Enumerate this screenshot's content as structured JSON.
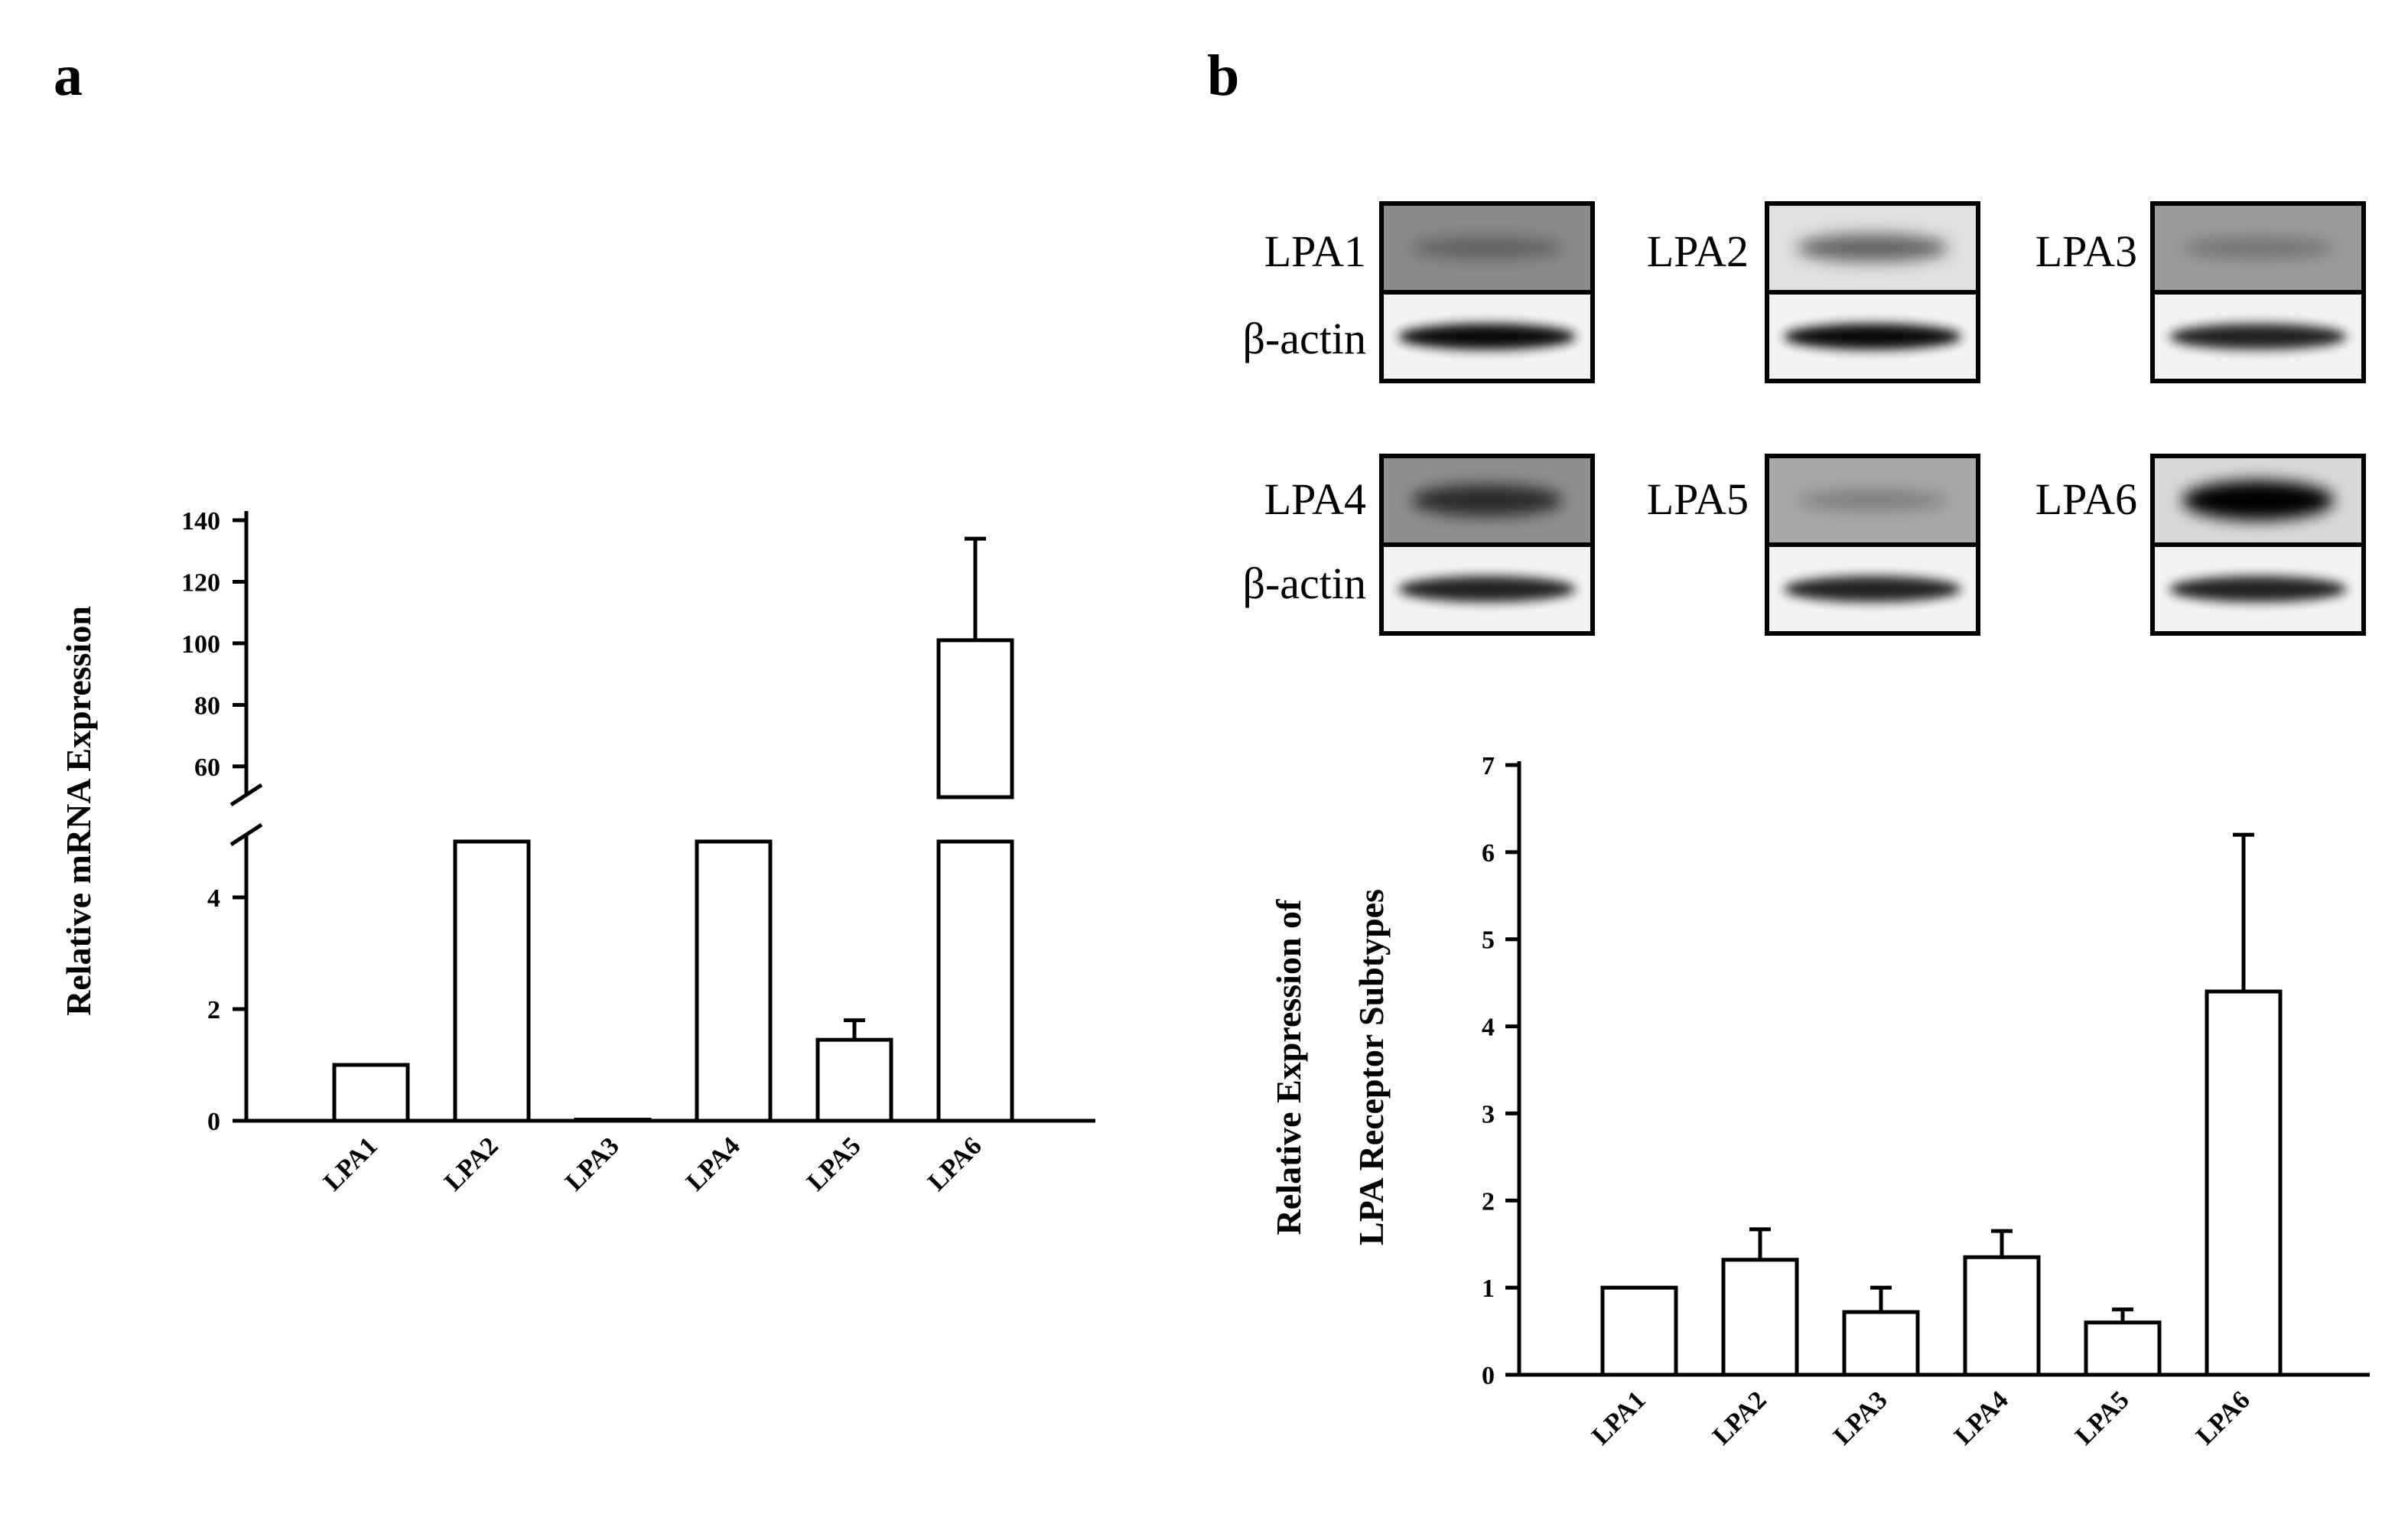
{
  "panel_a_label": "a",
  "panel_b_label": "b",
  "blot_labels": {
    "lpa1": "LPA1",
    "lpa2": "LPA2",
    "lpa3": "LPA3",
    "lpa4": "LPA4",
    "lpa5": "LPA5",
    "lpa6": "LPA6",
    "actin1": "β-actin",
    "actin2": "β-actin"
  },
  "blot_bands": [
    {
      "receptor": "LPA1",
      "receptor_band_intensity": 0.3,
      "actin_band_intensity": 0.95,
      "background": "#8a8a8a"
    },
    {
      "receptor": "LPA2",
      "receptor_band_intensity": 0.55,
      "actin_band_intensity": 0.95,
      "background": "#e0e0e0"
    },
    {
      "receptor": "LPA3",
      "receptor_band_intensity": 0.25,
      "actin_band_intensity": 0.85,
      "background": "#9a9a9a"
    },
    {
      "receptor": "LPA4",
      "receptor_band_intensity": 0.7,
      "actin_band_intensity": 0.85,
      "background": "#8f8f8f"
    },
    {
      "receptor": "LPA5",
      "receptor_band_intensity": 0.25,
      "actin_band_intensity": 0.85,
      "background": "#a8a8a8"
    },
    {
      "receptor": "LPA6",
      "receptor_band_intensity": 1.0,
      "actin_band_intensity": 0.85,
      "background": "#d8d8d8"
    }
  ],
  "chart_data": [
    {
      "type": "bar",
      "panel": "a",
      "title": "",
      "xlabel": "",
      "ylabel": "Relative mRNA Expression",
      "categories": [
        "LPA1",
        "LPA2",
        "LPA3",
        "LPA4",
        "LPA5",
        "LPA6"
      ],
      "values": [
        1.0,
        5.0,
        0.02,
        5.0,
        1.45,
        101
      ],
      "error_upper": [
        null,
        null,
        null,
        null,
        1.8,
        134
      ],
      "broken_axis": true,
      "segments": [
        {
          "range": [
            0,
            5
          ],
          "ticks": [
            "0",
            "2",
            "4"
          ],
          "tick_values": [
            0,
            2,
            4
          ]
        },
        {
          "range": [
            50,
            140
          ],
          "ticks": [
            "60",
            "80",
            "100",
            "120",
            "140"
          ],
          "tick_values": [
            60,
            80,
            100,
            120,
            140
          ]
        }
      ],
      "truncated_bars_in_lower_segment": [
        "LPA2",
        "LPA4",
        "LPA6"
      ],
      "grid": false
    },
    {
      "type": "bar",
      "panel": "b",
      "title": "",
      "xlabel": "",
      "ylabel": "Relative Expression of LPA Receptor Subtypes",
      "ylabel_lines": [
        "Relative Expression of",
        "LPA Receptor Subtypes"
      ],
      "categories": [
        "LPA1",
        "LPA2",
        "LPA3",
        "LPA4",
        "LPA5",
        "LPA6"
      ],
      "values": [
        1.0,
        1.32,
        0.72,
        1.35,
        0.6,
        4.4
      ],
      "error_upper": [
        null,
        1.67,
        1.0,
        1.65,
        0.75,
        6.2
      ],
      "ylim": [
        0,
        7
      ],
      "yticks": [
        "0",
        "1",
        "2",
        "3",
        "4",
        "5",
        "6",
        "7"
      ],
      "ytick_values": [
        0,
        1,
        2,
        3,
        4,
        5,
        6,
        7
      ],
      "grid": false
    }
  ]
}
